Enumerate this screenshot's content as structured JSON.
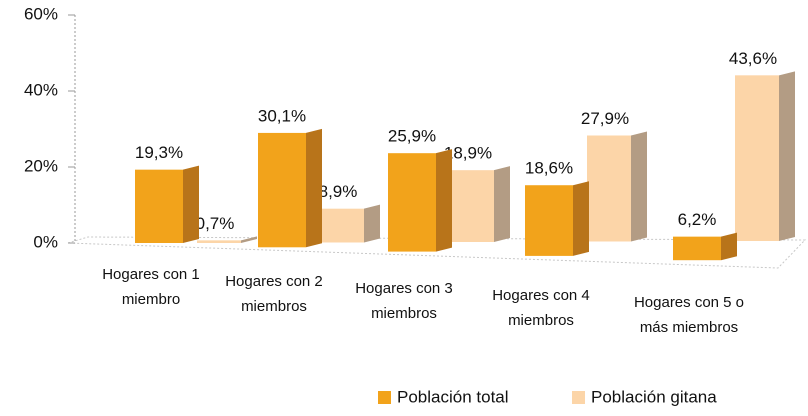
{
  "chart_data": {
    "type": "bar3d",
    "categories": [
      "Hogares con 1 miembro",
      "Hogares con 2 miembros",
      "Hogares con 3 miembros",
      "Hogares con 4 miembros",
      "Hogares con 5 o más miembros"
    ],
    "series": [
      {
        "name": "Población total",
        "color": "#f2a31b",
        "side_color": "#b8741a",
        "values": [
          19.3,
          30.1,
          25.9,
          18.6,
          6.2
        ],
        "value_labels": [
          "19,3%",
          "30,1%",
          "25,9%",
          "18,6%",
          "6,2%"
        ]
      },
      {
        "name": "Población gitana",
        "color": "#fcd5a8",
        "side_color": "#b39c84",
        "values": [
          0.7,
          8.9,
          18.9,
          27.9,
          43.6
        ],
        "value_labels": [
          "0,7%",
          "8,9%",
          "18,9%",
          "27,9%",
          "43,6%"
        ]
      }
    ],
    "ylim": [
      0,
      60
    ],
    "yticks": [
      {
        "value": 0,
        "label": "0%"
      },
      {
        "value": 20,
        "label": "20%"
      },
      {
        "value": 40,
        "label": "40%"
      },
      {
        "value": 60,
        "label": "60%"
      }
    ],
    "legend": "bottom"
  }
}
